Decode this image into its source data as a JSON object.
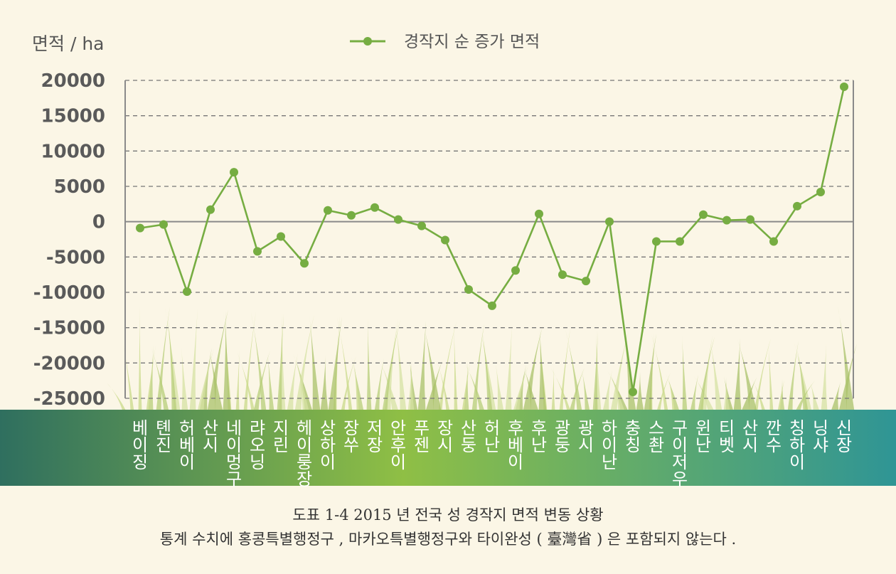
{
  "chart_data": {
    "type": "line",
    "ylabel": "면적 / ha",
    "ylim": [
      -25000,
      20000
    ],
    "yticks": [
      20000,
      15000,
      10000,
      5000,
      0,
      -5000,
      -10000,
      -15000,
      -20000,
      -25000
    ],
    "grid": true,
    "legend_position": "top-center",
    "series": [
      {
        "name": "경작지 순 증가 면적",
        "color": "#76ad42",
        "values": [
          -900,
          -400,
          -9900,
          1700,
          7000,
          -4200,
          -2100,
          -5900,
          1600,
          900,
          2000,
          300,
          -600,
          -2600,
          -9600,
          -11900,
          -6900,
          1100,
          -7500,
          -8400,
          0,
          -24100,
          -2800,
          -2800,
          1000,
          200,
          300,
          -2800,
          2200,
          4200,
          19100
        ]
      }
    ],
    "categories": [
      "베이징",
      "톈진",
      "허베이",
      "산시",
      "네이멍구",
      "랴오닝",
      "지린",
      "헤이룽장",
      "상하이",
      "장쑤",
      "저장",
      "안후이",
      "푸젠",
      "장시",
      "산둥",
      "허난",
      "후베이",
      "후난",
      "광둥",
      "광시",
      "하이난",
      "충칭",
      "스촨",
      "구이저우",
      "윈난",
      "티벳",
      "산시",
      "깐수",
      "칭하이",
      "닝샤",
      "신장"
    ]
  },
  "colors": {
    "background": "#fbf6e6",
    "axis": "#8a8a8a",
    "tick_text": "#5a5a5a",
    "band_left": "#2f6f5f",
    "band_mid": "#8fbf45",
    "band_right": "#2f9595"
  },
  "caption": {
    "title": "도표 1-4 2015 년 전국 성 경작지 면적 변동 상황",
    "note": "통계 수치에 홍콩특별행정구 , 마카오특별행정구와 타이완성 ( 臺灣省 ) 은 포함되지 않는다 ."
  }
}
